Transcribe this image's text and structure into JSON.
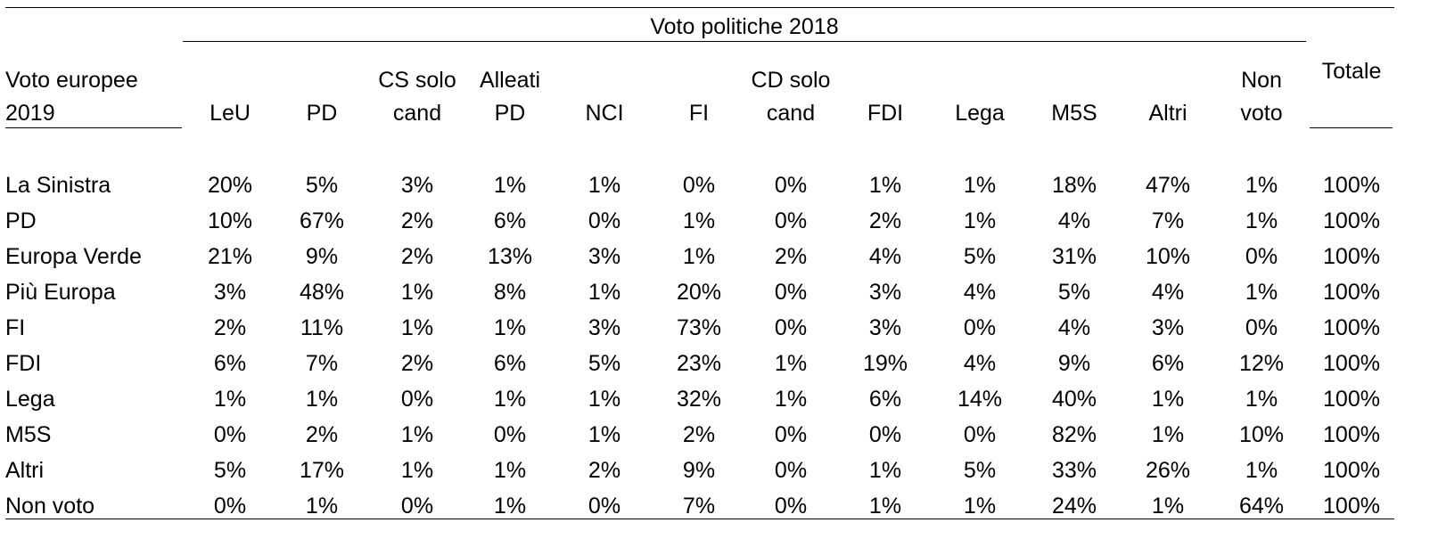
{
  "table": {
    "group_header": "Voto politiche 2018",
    "row_header": [
      "Voto europee",
      "2019"
    ],
    "columns": [
      [
        "",
        "LeU"
      ],
      [
        "",
        "PD"
      ],
      [
        "CS solo",
        "cand"
      ],
      [
        "Alleati",
        "PD"
      ],
      [
        "",
        "NCI"
      ],
      [
        "",
        "FI"
      ],
      [
        "CD solo",
        "cand"
      ],
      [
        "",
        "FDI"
      ],
      [
        "",
        "Lega"
      ],
      [
        "",
        "M5S"
      ],
      [
        "",
        "Altri"
      ],
      [
        "Non",
        "voto"
      ]
    ],
    "total_header": "Totale",
    "rows": [
      {
        "label": "La Sinistra",
        "values": [
          "20%",
          "5%",
          "3%",
          "1%",
          "1%",
          "0%",
          "0%",
          "1%",
          "1%",
          "18%",
          "47%",
          "1%"
        ],
        "total": "100%"
      },
      {
        "label": "PD",
        "values": [
          "10%",
          "67%",
          "2%",
          "6%",
          "0%",
          "1%",
          "0%",
          "2%",
          "1%",
          "4%",
          "7%",
          "1%"
        ],
        "total": "100%"
      },
      {
        "label": "Europa Verde",
        "values": [
          "21%",
          "9%",
          "2%",
          "13%",
          "3%",
          "1%",
          "2%",
          "4%",
          "5%",
          "31%",
          "10%",
          "0%"
        ],
        "total": "100%"
      },
      {
        "label": "Più Europa",
        "values": [
          "3%",
          "48%",
          "1%",
          "8%",
          "1%",
          "20%",
          "0%",
          "3%",
          "4%",
          "5%",
          "4%",
          "1%"
        ],
        "total": "100%"
      },
      {
        "label": "FI",
        "values": [
          "2%",
          "11%",
          "1%",
          "1%",
          "3%",
          "73%",
          "0%",
          "3%",
          "0%",
          "4%",
          "3%",
          "0%"
        ],
        "total": "100%"
      },
      {
        "label": "FDI",
        "values": [
          "6%",
          "7%",
          "2%",
          "6%",
          "5%",
          "23%",
          "1%",
          "19%",
          "4%",
          "9%",
          "6%",
          "12%"
        ],
        "total": "100%"
      },
      {
        "label": "Lega",
        "values": [
          "1%",
          "1%",
          "0%",
          "1%",
          "1%",
          "32%",
          "1%",
          "6%",
          "14%",
          "40%",
          "1%",
          "1%"
        ],
        "total": "100%"
      },
      {
        "label": "M5S",
        "values": [
          "0%",
          "2%",
          "1%",
          "0%",
          "1%",
          "2%",
          "0%",
          "0%",
          "0%",
          "82%",
          "1%",
          "10%"
        ],
        "total": "100%"
      },
      {
        "label": "Altri",
        "values": [
          "5%",
          "17%",
          "1%",
          "1%",
          "2%",
          "9%",
          "0%",
          "1%",
          "5%",
          "33%",
          "26%",
          "1%"
        ],
        "total": "100%"
      },
      {
        "label": "Non voto",
        "values": [
          "0%",
          "1%",
          "0%",
          "1%",
          "0%",
          "7%",
          "0%",
          "1%",
          "1%",
          "24%",
          "1%",
          "64%"
        ],
        "total": "100%"
      }
    ]
  }
}
